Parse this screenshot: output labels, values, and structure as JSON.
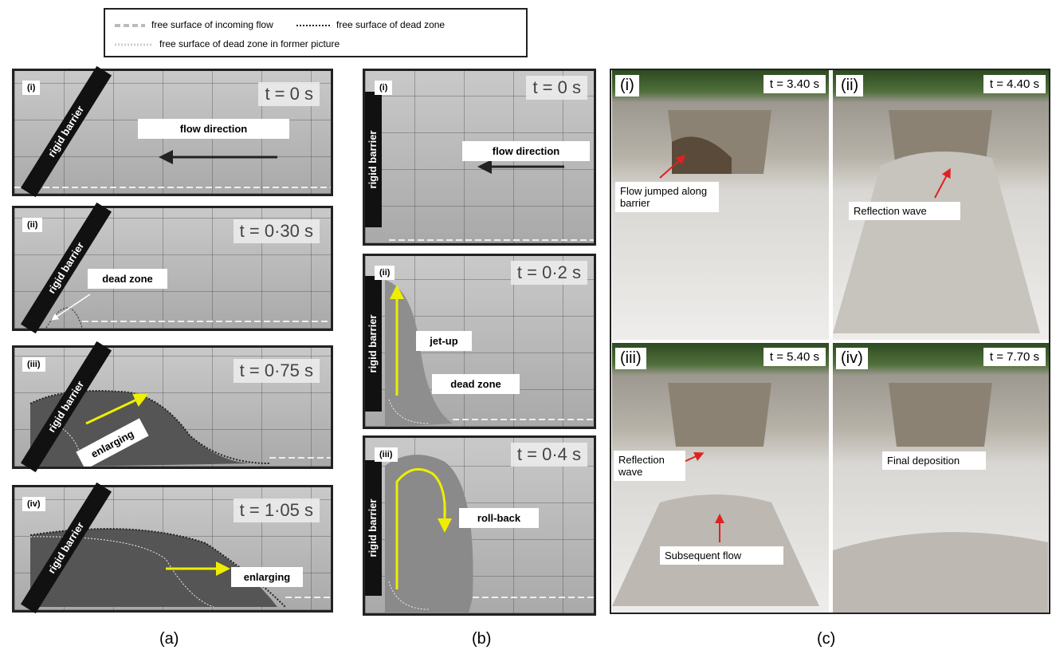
{
  "legend": [
    "free surface of incoming flow",
    "free surface of dead zone",
    "free surface of dead zone in former picture"
  ],
  "panel_a": {
    "caption": "(a)",
    "barrier_label": "rigid barrier",
    "frames": [
      {
        "label": "(i)",
        "time": "t = 0 s",
        "annotations": [
          "flow direction"
        ]
      },
      {
        "label": "(ii)",
        "time": "t = 0·30 s",
        "annotations": [
          "dead zone"
        ]
      },
      {
        "label": "(iii)",
        "time": "t = 0·75 s",
        "annotations": [
          "enlarging"
        ]
      },
      {
        "label": "(iv)",
        "time": "t = 1·05 s",
        "annotations": [
          "enlarging"
        ]
      }
    ]
  },
  "panel_b": {
    "caption": "(b)",
    "barrier_label": "rigid barrier",
    "frames": [
      {
        "label": "(i)",
        "time": "t = 0 s",
        "annotations": [
          "flow direction"
        ]
      },
      {
        "label": "(ii)",
        "time": "t = 0·2 s",
        "annotations": [
          "jet-up",
          "dead zone"
        ]
      },
      {
        "label": "(iii)",
        "time": "t = 0·4 s",
        "annotations": [
          "roll-back"
        ]
      }
    ]
  },
  "panel_c": {
    "caption": "(c)",
    "frames": [
      {
        "label": "(i)",
        "time": "t = 3.40 s",
        "annotations": [
          "Flow jumped along barrier"
        ]
      },
      {
        "label": "(ii)",
        "time": "t = 4.40 s",
        "annotations": [
          "Reflection wave"
        ]
      },
      {
        "label": "(iii)",
        "time": "t = 5.40 s",
        "annotations": [
          "Reflection wave",
          "Subsequent flow"
        ]
      },
      {
        "label": "(iv)",
        "time": "t = 7.70 s",
        "annotations": [
          "Final deposition"
        ]
      }
    ]
  }
}
